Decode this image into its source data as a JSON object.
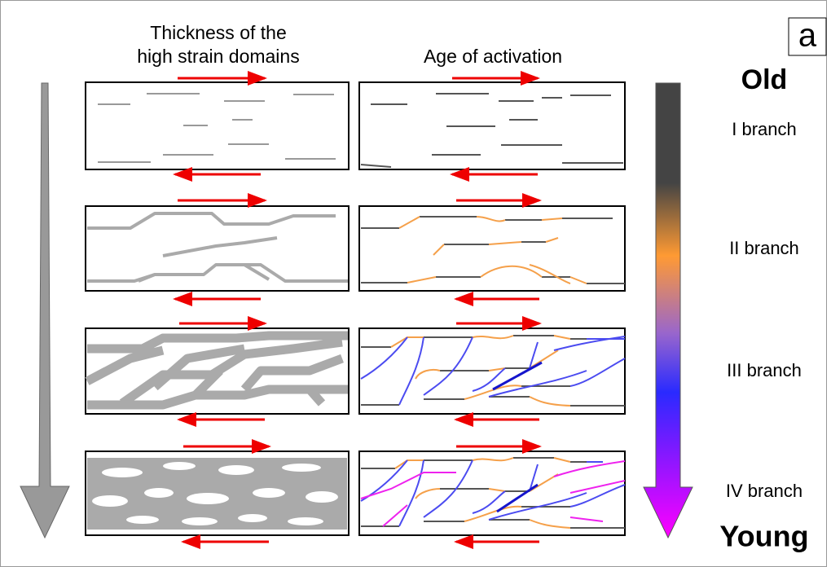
{
  "header": {
    "label": "a",
    "left_title": [
      "Thickness of the",
      "high strain domains"
    ],
    "right_title": "Age of activation"
  },
  "scale": {
    "top": "Old",
    "bottom": "Young",
    "branches": [
      "I branch",
      "II branch",
      "III branch",
      "IV branch"
    ]
  }
}
